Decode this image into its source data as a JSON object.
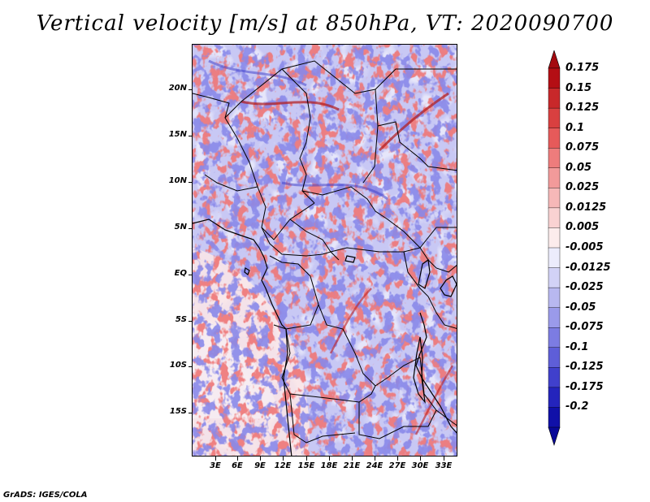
{
  "title": "Vertical velocity [m/s] at 850hPa, VT: 2020090700",
  "credit": "GrADS: IGES/COLA",
  "map": {
    "lat_labels": [
      "20N",
      "15N",
      "10N",
      "5N",
      "EQ",
      "5S",
      "10S",
      "15S"
    ],
    "lon_labels": [
      "3E",
      "6E",
      "9E",
      "12E",
      "15E",
      "18E",
      "21E",
      "24E",
      "27E",
      "30E",
      "33E"
    ]
  },
  "colorbar": {
    "labels": [
      "0.175",
      "0.15",
      "0.125",
      "0.1",
      "0.075",
      "0.05",
      "0.025",
      "0.0125",
      "0.005",
      "-0.005",
      "-0.0125",
      "-0.025",
      "-0.05",
      "-0.075",
      "-0.1",
      "-0.125",
      "-0.175",
      "-0.2"
    ],
    "colors": [
      "#b40e14",
      "#c8282a",
      "#d94040",
      "#e65a5a",
      "#ee7c7c",
      "#f29a9a",
      "#f6b8b8",
      "#f9d2d2",
      "#fcecec",
      "#ececfc",
      "#d2d2f6",
      "#b8b8f0",
      "#9a9aea",
      "#7c7ce2",
      "#5e5ed8",
      "#4040cc",
      "#2424bc",
      "#1010a8"
    ],
    "top_cap_color": "#a40a10",
    "bottom_cap_color": "#080898"
  }
}
